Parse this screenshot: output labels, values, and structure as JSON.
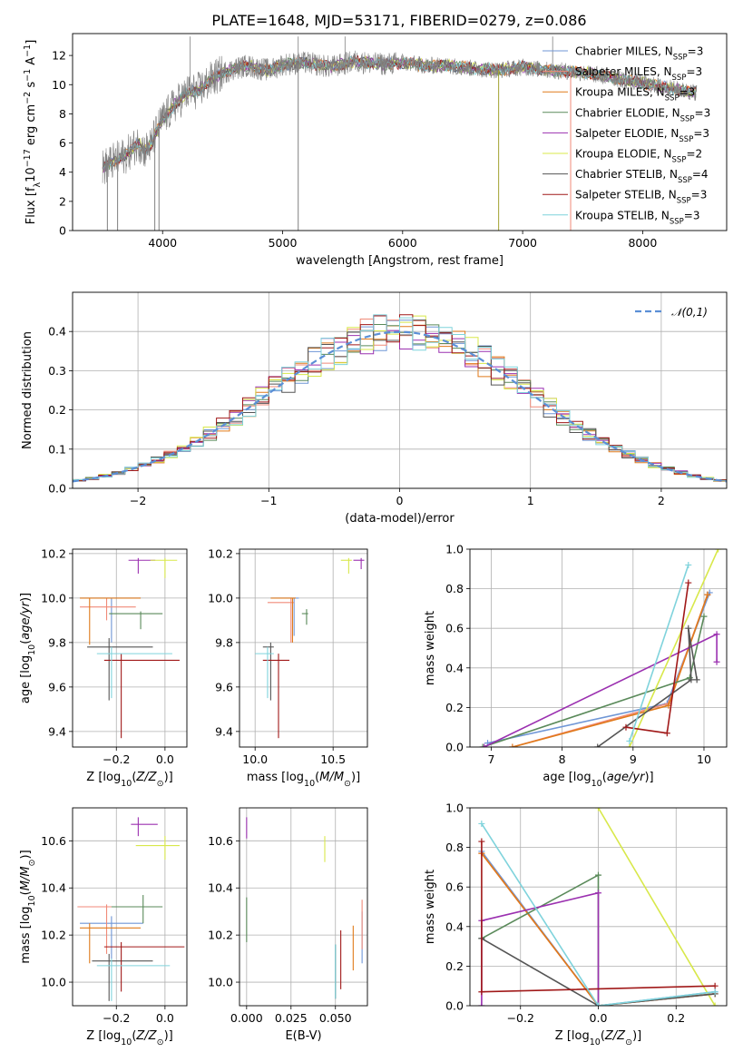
{
  "title": "PLATE=1648, MJD=53171, FIBERID=0279, z=0.086",
  "colors": {
    "chabrier_miles": "#6f96d6",
    "salpeter_miles": "#f08a78",
    "kroupa_miles": "#e07a1a",
    "chabrier_elodie": "#5a8a5a",
    "salpeter_elodie": "#9b30b0",
    "kroupa_elodie": "#d8e84a",
    "chabrier_stelib": "#555555",
    "salpeter_stelib": "#a01818",
    "kroupa_stelib": "#7fd3dc",
    "data": "#808080",
    "gaussian": "#5b8fd6"
  },
  "legend_spectrum": [
    {
      "key": "chabrier_miles",
      "text": "Chabrier MILES, N",
      "sub": "SSP",
      "val": "=3"
    },
    {
      "key": "salpeter_miles",
      "text": "Salpeter MILES, N",
      "sub": "SSP",
      "val": "=3"
    },
    {
      "key": "kroupa_miles",
      "text": "Kroupa MILES, N",
      "sub": "SSP",
      "val": "=3"
    },
    {
      "key": "chabrier_elodie",
      "text": "Chabrier ELODIE, N",
      "sub": "SSP",
      "val": "=3"
    },
    {
      "key": "salpeter_elodie",
      "text": "Salpeter ELODIE, N",
      "sub": "SSP",
      "val": "=3"
    },
    {
      "key": "kroupa_elodie",
      "text": "Kroupa ELODIE, N",
      "sub": "SSP",
      "val": "=2"
    },
    {
      "key": "chabrier_stelib",
      "text": "Chabrier STELIB, N",
      "sub": "SSP",
      "val": "=4"
    },
    {
      "key": "salpeter_stelib",
      "text": "Salpeter STELIB, N",
      "sub": "SSP",
      "val": "=3"
    },
    {
      "key": "kroupa_stelib",
      "text": "Kroupa STELIB, N",
      "sub": "SSP",
      "val": "=3"
    }
  ],
  "chart_data": [
    {
      "type": "line",
      "name": "spectrum",
      "xlabel": "wavelength [Angstrom, rest frame]",
      "ylabel": "Flux [f_λ 10^-17 erg cm^-2 s^-1 A^-1]",
      "xlim": [
        3250,
        8700
      ],
      "ylim": [
        0,
        13.5
      ],
      "xticks": [
        4000,
        5000,
        6000,
        7000,
        8000
      ],
      "yticks": [
        0,
        2,
        4,
        6,
        8,
        10,
        12
      ],
      "continuum_x": [
        3500,
        3600,
        3700,
        3800,
        3850,
        3900,
        3950,
        4000,
        4100,
        4200,
        4300,
        4400,
        4500,
        4600,
        4700,
        4800,
        4900,
        5000,
        5200,
        5400,
        5600,
        5800,
        6000,
        6200,
        6400,
        6600,
        6800,
        7000,
        7200,
        7400,
        7600,
        7800,
        8000,
        8200,
        8400
      ],
      "continuum_y": [
        4.3,
        4.8,
        5.2,
        6.0,
        5.5,
        5.8,
        6.8,
        7.6,
        8.6,
        9.4,
        9.6,
        10.3,
        10.8,
        11.1,
        11.3,
        11.1,
        11.0,
        11.4,
        11.5,
        11.2,
        11.6,
        11.4,
        11.5,
        11.3,
        11.3,
        11.1,
        11.0,
        11.2,
        11.0,
        10.9,
        10.7,
        10.4,
        10.1,
        9.8,
        9.5
      ],
      "data_x_range": [
        3500,
        8450
      ],
      "dips": [
        [
          3540,
          0
        ],
        [
          3625,
          0
        ],
        [
          3935,
          0
        ],
        [
          3970,
          0
        ],
        [
          5130,
          0
        ],
        [
          6800,
          0
        ],
        [
          7400,
          0
        ]
      ],
      "spikes": [
        [
          4230,
          13.3
        ],
        [
          5130,
          13.3
        ],
        [
          5520,
          13.3
        ],
        [
          7250,
          13.3
        ]
      ]
    },
    {
      "type": "line",
      "name": "residual histograms",
      "xlabel": "(data-model)/error",
      "ylabel": "Normed distribution",
      "xlim": [
        -2.5,
        2.5
      ],
      "ylim": [
        0,
        0.5
      ],
      "xticks": [
        -2,
        -1,
        0,
        1,
        2
      ],
      "yticks": [
        0.0,
        0.1,
        0.2,
        0.3,
        0.4
      ],
      "legend": "𝒩(0,1)",
      "bin_width": 0.1
    },
    {
      "type": "scatter",
      "name": "age vs Z",
      "xlabel": "Z [log10(Z/Z⊙)]",
      "ylabel": "age  [log10(age/yr)]",
      "xlim": [
        -0.38,
        0.09
      ],
      "ylim": [
        9.33,
        10.22
      ],
      "xticks": [
        -0.2,
        0.0
      ],
      "xticklabels": [
        "−0.2",
        "0.0"
      ],
      "yticks": [
        9.4,
        9.6,
        9.8,
        10.0,
        10.2
      ],
      "points": [
        {
          "key": "chabrier_miles",
          "x": -0.22,
          "y": 10.0,
          "xl": -0.35,
          "xh": -0.1,
          "yl": 9.8,
          "yh": 10.0
        },
        {
          "key": "salpeter_miles",
          "x": -0.24,
          "y": 9.96,
          "xl": -0.35,
          "xh": -0.12,
          "yl": 9.9,
          "yh": 10.0
        },
        {
          "key": "kroupa_miles",
          "x": -0.31,
          "y": 10.0,
          "xl": -0.35,
          "xh": -0.1,
          "yl": 9.79,
          "yh": 10.0
        },
        {
          "key": "chabrier_elodie",
          "x": -0.1,
          "y": 9.93,
          "xl": -0.23,
          "xh": -0.01,
          "yl": 9.86,
          "yh": 9.94
        },
        {
          "key": "salpeter_elodie",
          "x": -0.11,
          "y": 10.17,
          "xl": -0.15,
          "xh": -0.04,
          "yl": 10.11,
          "yh": 10.18
        },
        {
          "key": "kroupa_elodie",
          "x": 0.0,
          "y": 10.17,
          "xl": -0.06,
          "xh": 0.05,
          "yl": 10.09,
          "yh": 10.18
        },
        {
          "key": "chabrier_stelib",
          "x": -0.23,
          "y": 9.78,
          "xl": -0.32,
          "xh": -0.05,
          "yl": 9.54,
          "yh": 9.82
        },
        {
          "key": "salpeter_stelib",
          "x": -0.18,
          "y": 9.72,
          "xl": -0.25,
          "xh": 0.06,
          "yl": 9.37,
          "yh": 9.75
        },
        {
          "key": "kroupa_stelib",
          "x": -0.22,
          "y": 9.75,
          "xl": -0.28,
          "xh": 0.03,
          "yl": 9.55,
          "yh": 9.78
        }
      ]
    },
    {
      "type": "scatter",
      "name": "age vs mass",
      "xlabel": "mass [log10(M/M⊙)]",
      "ylabel": "",
      "xlim": [
        9.9,
        10.72
      ],
      "ylim": [
        9.33,
        10.22
      ],
      "xticks": [
        10.0,
        10.5
      ],
      "yticks": [
        9.4,
        9.6,
        9.8,
        10.0,
        10.2
      ],
      "points": [
        {
          "key": "chabrier_miles",
          "x": 10.25,
          "y": 10.0,
          "xl": 10.1,
          "xh": 10.28,
          "yl": 9.83,
          "yh": 10.0
        },
        {
          "key": "salpeter_miles",
          "x": 10.23,
          "y": 9.98,
          "xl": 10.08,
          "xh": 10.25,
          "yl": 9.8,
          "yh": 10.0
        },
        {
          "key": "kroupa_miles",
          "x": 10.24,
          "y": 10.0,
          "xl": 10.1,
          "xh": 10.26,
          "yl": 9.8,
          "yh": 10.0
        },
        {
          "key": "chabrier_elodie",
          "x": 10.33,
          "y": 9.93,
          "xl": 10.3,
          "xh": 10.34,
          "yl": 9.88,
          "yh": 9.95
        },
        {
          "key": "salpeter_elodie",
          "x": 10.68,
          "y": 10.17,
          "xl": 10.63,
          "xh": 10.7,
          "yl": 10.13,
          "yh": 10.18
        },
        {
          "key": "kroupa_elodie",
          "x": 10.6,
          "y": 10.17,
          "xl": 10.55,
          "xh": 10.62,
          "yl": 10.11,
          "yh": 10.18
        },
        {
          "key": "chabrier_stelib",
          "x": 10.1,
          "y": 9.78,
          "xl": 10.05,
          "xh": 10.12,
          "yl": 9.54,
          "yh": 9.8
        },
        {
          "key": "salpeter_stelib",
          "x": 10.15,
          "y": 9.72,
          "xl": 10.05,
          "xh": 10.22,
          "yl": 9.37,
          "yh": 9.75
        },
        {
          "key": "kroupa_stelib",
          "x": 10.08,
          "y": 9.75,
          "xl": 10.0,
          "xh": 10.12,
          "yl": 9.55,
          "yh": 9.78
        }
      ]
    },
    {
      "type": "line",
      "name": "mass weight vs age",
      "xlabel": "age  [log10(age/yr)]",
      "ylabel": "mass weight",
      "xlim": [
        6.7,
        10.32
      ],
      "ylim": [
        0,
        1.0
      ],
      "xticks": [
        7,
        8,
        9,
        10
      ],
      "yticks": [
        0.0,
        0.2,
        0.4,
        0.6,
        0.8,
        1.0
      ],
      "series": [
        {
          "key": "chabrier_miles",
          "x": [
            6.95,
            9.48,
            10.08
          ],
          "y": [
            0.02,
            0.22,
            0.78
          ]
        },
        {
          "key": "salpeter_miles",
          "x": [
            7.3,
            9.5,
            10.05
          ],
          "y": [
            0.0,
            0.22,
            0.77
          ]
        },
        {
          "key": "kroupa_miles",
          "x": [
            7.3,
            9.5,
            10.05
          ],
          "y": [
            0.0,
            0.21,
            0.77
          ]
        },
        {
          "key": "chabrier_elodie",
          "x": [
            6.88,
            9.8,
            10.0
          ],
          "y": [
            0.0,
            0.35,
            0.66
          ]
        },
        {
          "key": "salpeter_elodie",
          "x": [
            6.9,
            10.18,
            10.18
          ],
          "y": [
            0.0,
            0.57,
            0.43
          ]
        },
        {
          "key": "kroupa_elodie",
          "x": [
            8.95,
            10.2
          ],
          "y": [
            0.0,
            1.0
          ]
        },
        {
          "key": "chabrier_stelib",
          "x": [
            8.5,
            9.82,
            9.78,
            9.9
          ],
          "y": [
            0.0,
            0.34,
            0.6,
            0.34
          ]
        },
        {
          "key": "salpeter_stelib",
          "x": [
            8.9,
            9.48,
            9.78
          ],
          "y": [
            0.1,
            0.07,
            0.83
          ]
        },
        {
          "key": "kroupa_stelib",
          "x": [
            8.95,
            9.78
          ],
          "y": [
            0.03,
            0.92
          ]
        }
      ]
    },
    {
      "type": "scatter",
      "name": "mass vs Z",
      "xlabel": "Z [log10(Z/Z⊙)]",
      "ylabel": "mass [log10(M/M⊙)]",
      "xlim": [
        -0.38,
        0.09
      ],
      "ylim": [
        9.9,
        10.74
      ],
      "xticks": [
        -0.2,
        0.0
      ],
      "xticklabels": [
        "−0.2",
        "0.0"
      ],
      "yticks": [
        10.0,
        10.2,
        10.4,
        10.6
      ],
      "points": [
        {
          "key": "chabrier_miles",
          "x": -0.22,
          "y": 10.25,
          "xl": -0.35,
          "xh": -0.09,
          "yl": 10.1,
          "yh": 10.28
        },
        {
          "key": "salpeter_miles",
          "x": -0.24,
          "y": 10.32,
          "xl": -0.36,
          "xh": -0.12,
          "yl": 10.12,
          "yh": 10.33
        },
        {
          "key": "kroupa_miles",
          "x": -0.31,
          "y": 10.23,
          "xl": -0.35,
          "xh": -0.1,
          "yl": 10.08,
          "yh": 10.25
        },
        {
          "key": "chabrier_elodie",
          "x": -0.09,
          "y": 10.32,
          "xl": -0.22,
          "xh": -0.01,
          "yl": 10.25,
          "yh": 10.37
        },
        {
          "key": "salpeter_elodie",
          "x": -0.11,
          "y": 10.67,
          "xl": -0.14,
          "xh": -0.03,
          "yl": 10.62,
          "yh": 10.7
        },
        {
          "key": "kroupa_elodie",
          "x": 0.0,
          "y": 10.58,
          "xl": -0.12,
          "xh": 0.06,
          "yl": 10.52,
          "yh": 10.62
        },
        {
          "key": "chabrier_stelib",
          "x": -0.23,
          "y": 10.09,
          "xl": -0.3,
          "xh": -0.05,
          "yl": 9.92,
          "yh": 10.12
        },
        {
          "key": "salpeter_stelib",
          "x": -0.18,
          "y": 10.15,
          "xl": -0.25,
          "xh": 0.08,
          "yl": 9.96,
          "yh": 10.17
        },
        {
          "key": "kroupa_stelib",
          "x": -0.22,
          "y": 10.07,
          "xl": -0.28,
          "xh": 0.02,
          "yl": 9.92,
          "yh": 10.1
        }
      ]
    },
    {
      "type": "scatter",
      "name": "mass vs E(B-V)",
      "xlabel": "E(B-V)",
      "ylabel": "",
      "xlim": [
        -0.004,
        0.068
      ],
      "ylim": [
        9.9,
        10.74
      ],
      "xticks": [
        0.0,
        0.025,
        0.05
      ],
      "xticklabels": [
        "0.000",
        "0.025",
        "0.050"
      ],
      "yticks": [
        10.0,
        10.2,
        10.4,
        10.6
      ],
      "points": [
        {
          "key": "chabrier_miles",
          "x": 0.065,
          "y": 10.2,
          "yl": 10.08,
          "yh": 10.3
        },
        {
          "key": "salpeter_miles",
          "x": 0.065,
          "y": 10.25,
          "yl": 10.14,
          "yh": 10.35
        },
        {
          "key": "kroupa_miles",
          "x": 0.06,
          "y": 10.15,
          "yl": 10.05,
          "yh": 10.24
        },
        {
          "key": "chabrier_elodie",
          "x": 0.0,
          "y": 10.25,
          "yl": 10.17,
          "yh": 10.36
        },
        {
          "key": "salpeter_elodie",
          "x": 0.0,
          "y": 10.67,
          "yl": 10.61,
          "yh": 10.7
        },
        {
          "key": "kroupa_elodie",
          "x": 0.044,
          "y": 10.58,
          "yl": 10.51,
          "yh": 10.62
        },
        {
          "key": "chabrier_stelib",
          "x": 0.05,
          "y": 10.08,
          "yl": 9.93,
          "yh": 10.16
        },
        {
          "key": "salpeter_stelib",
          "x": 0.053,
          "y": 10.1,
          "yl": 9.97,
          "yh": 10.22
        },
        {
          "key": "kroupa_stelib",
          "x": 0.05,
          "y": 10.06,
          "yl": 9.93,
          "yh": 10.16
        }
      ]
    },
    {
      "type": "line",
      "name": "mass weight vs Z",
      "xlabel": "Z [log10(Z/Z⊙)]",
      "ylabel": "mass weight",
      "xlim": [
        -0.33,
        0.33
      ],
      "ylim": [
        0,
        1.0
      ],
      "xticks": [
        -0.2,
        0.0,
        0.2
      ],
      "xticklabels": [
        "−0.2",
        "0.0",
        "0.2"
      ],
      "yticks": [
        0.0,
        0.2,
        0.4,
        0.6,
        0.8,
        1.0
      ],
      "series": [
        {
          "key": "chabrier_miles",
          "x": [
            -0.3,
            0.0,
            0.3
          ],
          "y": [
            0.78,
            0.0,
            0.07
          ]
        },
        {
          "key": "salpeter_miles",
          "x": [
            -0.3,
            0.0,
            0.3
          ],
          "y": [
            0.77,
            0.0,
            0.06
          ]
        },
        {
          "key": "kroupa_miles",
          "x": [
            -0.3,
            0.0,
            0.3
          ],
          "y": [
            0.77,
            0.0,
            0.06
          ]
        },
        {
          "key": "chabrier_elodie",
          "x": [
            -0.3,
            0.0,
            0.0
          ],
          "y": [
            0.34,
            0.66,
            0.0
          ]
        },
        {
          "key": "salpeter_elodie",
          "x": [
            -0.3,
            -0.3,
            0.0,
            0.0
          ],
          "y": [
            0.0,
            0.43,
            0.57,
            0.0
          ]
        },
        {
          "key": "kroupa_elodie",
          "x": [
            0.0,
            0.3
          ],
          "y": [
            1.0,
            0.0
          ]
        },
        {
          "key": "chabrier_stelib",
          "x": [
            -0.3,
            0.0,
            0.3
          ],
          "y": [
            0.34,
            0.0,
            0.06
          ]
        },
        {
          "key": "salpeter_stelib",
          "x": [
            -0.3,
            -0.3,
            0.3
          ],
          "y": [
            0.83,
            0.07,
            0.1
          ]
        },
        {
          "key": "kroupa_stelib",
          "x": [
            -0.3,
            0.0,
            0.3
          ],
          "y": [
            0.92,
            0.0,
            0.07
          ]
        }
      ]
    }
  ]
}
